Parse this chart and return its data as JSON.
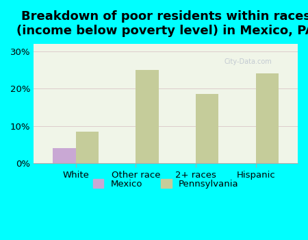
{
  "title": "Breakdown of poor residents within races\n(income below poverty level) in Mexico, PA",
  "categories": [
    "White",
    "Other race",
    "2+ races",
    "Hispanic"
  ],
  "mexico_values": [
    4.0,
    0,
    0,
    0
  ],
  "pennsylvania_values": [
    8.5,
    25.0,
    18.5,
    24.0
  ],
  "mexico_color": "#c9a8d4",
  "pennsylvania_color": "#c5cc9a",
  "background_color": "#00ffff",
  "plot_bg_color": "#f0f5e8",
  "ylim": [
    0,
    32
  ],
  "yticks": [
    0,
    10,
    20,
    30
  ],
  "ytick_labels": [
    "0%",
    "10%",
    "20%",
    "30%"
  ],
  "bar_width": 0.38,
  "title_fontsize": 13,
  "legend_labels": [
    "Mexico",
    "Pennsylvania"
  ],
  "watermark": "City-Data.com"
}
